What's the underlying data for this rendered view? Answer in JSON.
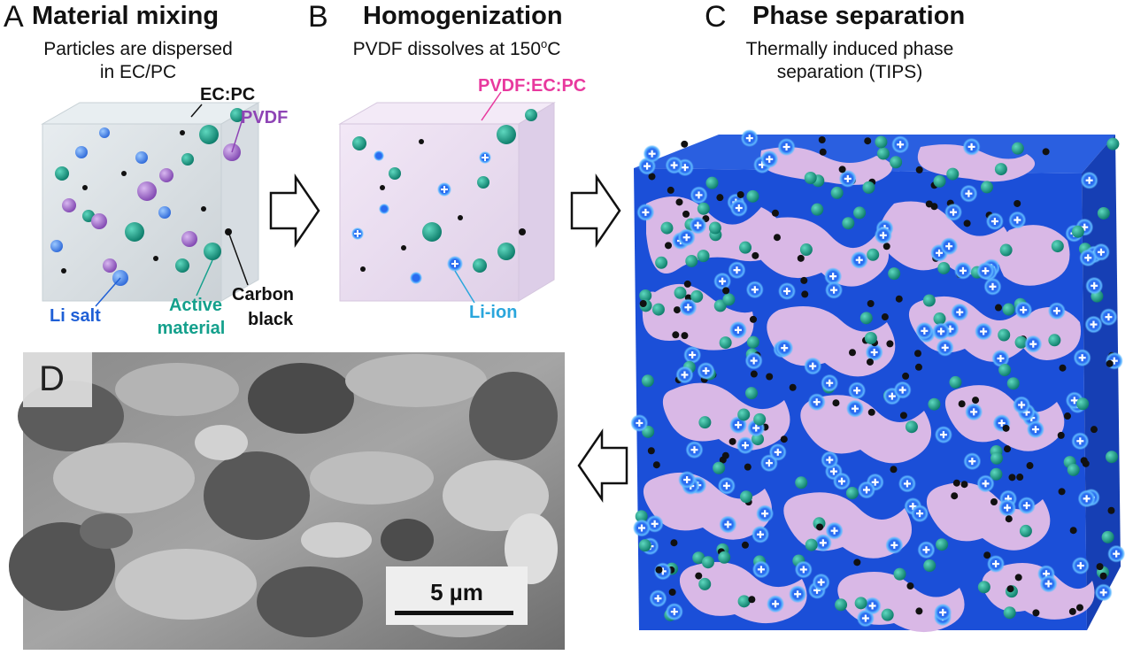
{
  "panels": {
    "a": {
      "letter": "A",
      "title": "Material mixing",
      "subtitle_line1": "Particles are dispersed",
      "subtitle_line2": "in EC/PC"
    },
    "b": {
      "letter": "B",
      "title": "Homogenization",
      "subtitle_pre": "PVDF dissolves at 150",
      "subtitle_sup": "o",
      "subtitle_post": "C"
    },
    "c": {
      "letter": "C",
      "title": "Phase separation",
      "subtitle_line1": "Thermally induced phase",
      "subtitle_line2": "separation (TIPS)"
    },
    "d": {
      "letter": "D",
      "scale_label": "5 µm"
    }
  },
  "labels": {
    "ecpc": "EC:PC",
    "pvdf": "PVDF",
    "li_salt": "Li salt",
    "active_line1": "Active",
    "active_line2": "material",
    "carbon_line1": "Carbon",
    "carbon_line2": "black",
    "pvdf_ecpc": "PVDF:EC:PC",
    "li_ion": "Li-ion"
  },
  "colors": {
    "pvdf": "#8e44b5",
    "li_salt": "#1f5fd6",
    "active_material": "#14a08c",
    "pvdf_ecpc": "#e8399e",
    "li_ion": "#2aa6dc",
    "carbon_black": "#111111",
    "binder_blue": "#1b4fd8",
    "binder_pink": "#d9b8e6"
  }
}
